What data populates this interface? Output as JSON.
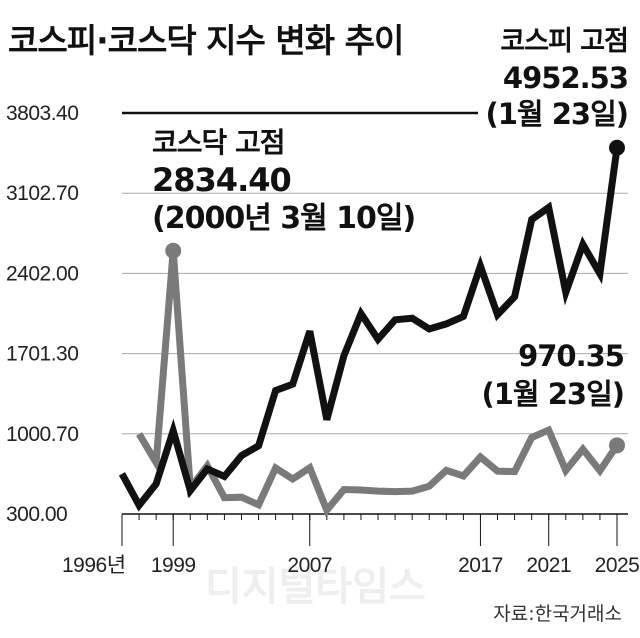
{
  "colors": {
    "kospi": "#111111",
    "kosdaq": "#7a7a7a",
    "grid": "#aaaaaa"
  },
  "chart_data": {
    "type": "line",
    "title": "코스피·코스닥 지수 변화 추이",
    "x": [
      1996,
      1997,
      1998,
      1999,
      2000,
      2001,
      2002,
      2003,
      2004,
      2005,
      2006,
      2007,
      2008,
      2009,
      2010,
      2011,
      2012,
      2013,
      2014,
      2015,
      2016,
      2017,
      2018,
      2019,
      2020,
      2021,
      2022,
      2023,
      2024,
      2025
    ],
    "x_tick_labels": [
      "1996년",
      "1999",
      "2007",
      "2017",
      "2021",
      "2025"
    ],
    "x_tick_values": [
      1996,
      1999,
      2007,
      2017,
      2021,
      2025
    ],
    "y_tick_labels": [
      "300.00",
      "1000.70",
      "1701.30",
      "2402.00",
      "3102.70",
      "3803.40"
    ],
    "y_tick_values": [
      300,
      1000.7,
      1701.3,
      2402,
      3102.7,
      3803.4
    ],
    "ylim": [
      300,
      3803.4
    ],
    "grid": "horizontal",
    "series": [
      {
        "key": "kospi",
        "values": [
          651,
          376,
          562,
          1028,
          504,
          694,
          628,
          810,
          896,
          1379,
          1434,
          1897,
          1124,
          1683,
          2051,
          1826,
          1997,
          2011,
          1916,
          1961,
          2026,
          2467,
          2041,
          2198,
          2873,
          2978,
          2236,
          2655,
          2399,
          3500
        ]
      },
      {
        "key": "kosdaq",
        "x": [
          1997,
          1998,
          1999,
          2000,
          2001,
          2002,
          2003,
          2004,
          2005,
          2006,
          2007,
          2008,
          2009,
          2010,
          2011,
          2012,
          2013,
          2014,
          2015,
          2016,
          2017,
          2018,
          2019,
          2020,
          2021,
          2022,
          2023,
          2024,
          2025
        ],
        "values": [
          1000,
          750,
          2600,
          525,
          722,
          442,
          447,
          380,
          702,
          606,
          704,
          333,
          514,
          510,
          500,
          496,
          500,
          543,
          682,
          632,
          798,
          675,
          670,
          968,
          1033,
          680,
          866,
          678,
          900
        ]
      }
    ],
    "annotations": {
      "kosdaq_high": {
        "lines": [
          "코스닥 고점",
          "2834.40",
          "(2000년 3월 10일)"
        ]
      },
      "kospi_high": {
        "lines": [
          "코스피 고점",
          "4952.53",
          "(1월 23일)"
        ]
      },
      "kosdaq_latest": {
        "lines": [
          "970.35",
          "(1월 23일)"
        ]
      }
    },
    "source": "자료:한국거래소"
  },
  "watermark": "디지털타임스"
}
